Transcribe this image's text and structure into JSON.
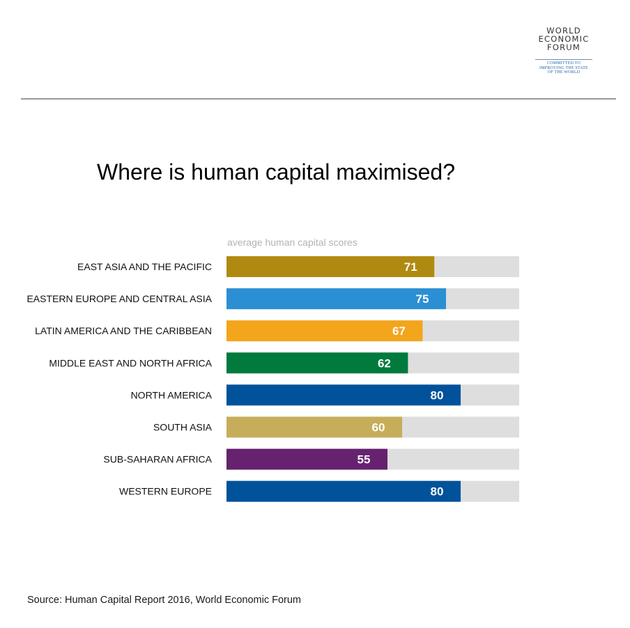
{
  "logo": {
    "lines": [
      "WORLD",
      "ECONOMIC",
      "FORUM"
    ],
    "tagline": [
      "COMMITTED TO",
      "IMPROVING THE STATE",
      "OF THE WORLD"
    ]
  },
  "title": "Where is human capital maximised?",
  "source": "Source: Human Capital Report 2016, World Economic Forum",
  "chart_data": {
    "type": "bar",
    "orientation": "horizontal",
    "title": "Where is human capital maximised?",
    "subtitle": "average human capital scores",
    "categories": [
      "EAST ASIA AND THE PACIFIC",
      "EASTERN EUROPE AND CENTRAL ASIA",
      "LATIN AMERICA AND THE CARIBBEAN",
      "MIDDLE EAST AND NORTH AFRICA",
      "NORTH AMERICA",
      "SOUTH ASIA",
      "SUB-SAHARAN AFRICA",
      "WESTERN EUROPE"
    ],
    "values": [
      71,
      75,
      67,
      62,
      80,
      60,
      55,
      80
    ],
    "colors": [
      "#b08a10",
      "#2b8fd3",
      "#f3a51b",
      "#007a3d",
      "#00529b",
      "#c6ad5a",
      "#66226e",
      "#00529b"
    ],
    "track_color": "#dedede",
    "xlim": [
      0,
      100
    ],
    "data_labels": true,
    "grid": false,
    "legend": false
  }
}
